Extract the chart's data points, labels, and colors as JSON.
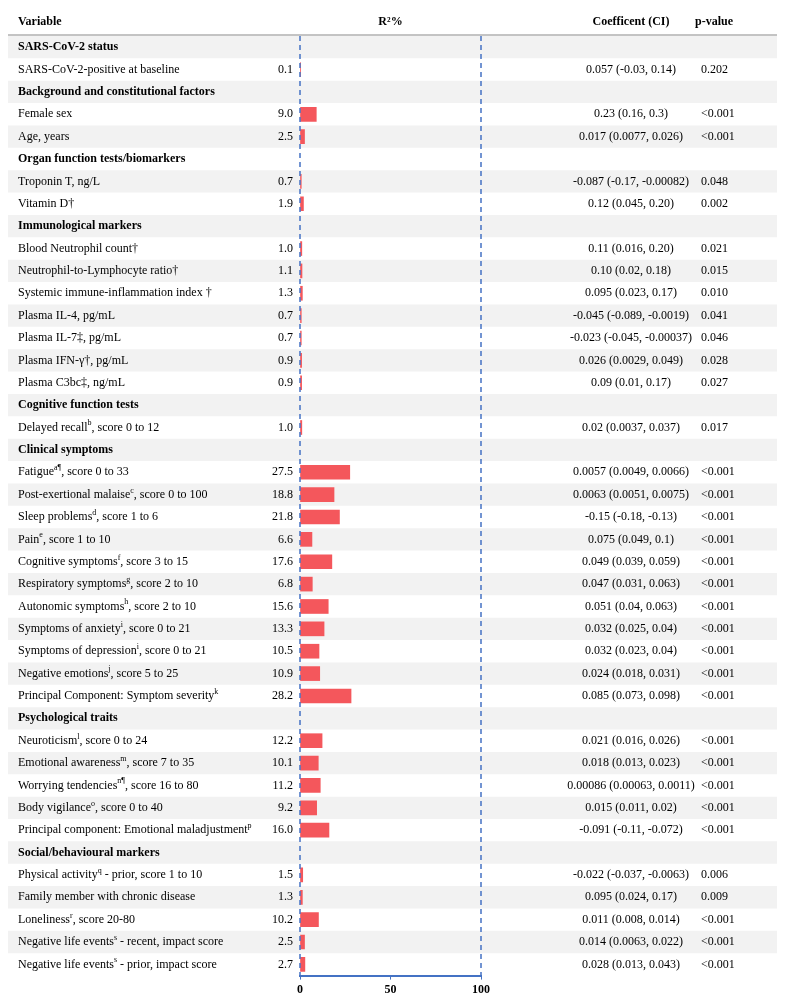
{
  "chart_data": {
    "type": "bar",
    "orientation": "horizontal",
    "categories": [
      "SARS-CoV-2 status",
      "SARS-CoV-2-positive at baseline",
      "Background and constitutional factors",
      "Female sex",
      "Age, years",
      "Organ function tests/biomarkers",
      "Troponin T, ng/L",
      "Vitamin D†",
      "Immunological markers",
      "Blood Neutrophil count†",
      "Neutrophil-to-Lymphocyte ratio†",
      "Systemic immune-inflammation index †",
      "Plasma IL-4, pg/mL",
      "Plasma IL-7‡, pg/mL",
      "Plasma IFN-γ†, pg/mL",
      "Plasma C3bc‡, ng/mL",
      "Cognitive function tests",
      "Delayed recall$^{b}$, score 0 to 12",
      "Clinical symptoms",
      "Fatigue$^{a¶}$, score 0 to 33",
      "Post-exertional malaise$^{c}$, score 0 to 100",
      "Sleep problems$^{d}$, score 1 to 6",
      "Pain$^{e}$, score 1 to 10",
      "Cognitive symptoms$^{f}$, score 3 to 15",
      "Respiratory symptoms$^{g}$, score 2 to 10",
      "Autonomic symptoms$^{h}$, score 2 to 10",
      "Symptoms of anxiety$^{i}$, score 0 to 21",
      "Symptoms of depression$^{i}$, score 0 to 21",
      "Negative emotions$^{j}$, score 5 to 25",
      "Principal Component: Symptom severity$^{k}$",
      "Psychological traits",
      "Neuroticism$^{l}$, score 0 to 24",
      "Emotional awareness$^{m}$, score 7 to 35",
      "Worrying tendencies$^{n¶}$, score 16 to 80",
      "Body vigilance$^{o}$, score 0 to 40",
      "Principal component: Emotional maladjustment$^{p}$",
      "Social/behavioural markers",
      "Physical activity$^{q}$ - prior, score 1 to 10",
      "Family member with chronic disease",
      "Loneliness$^{r}$, score 20-80",
      "Negative life events$^{s}$ - recent, impact score",
      "Negative life events$^{s}$ - prior, impact score"
    ],
    "values": [
      null,
      0.1,
      null,
      9.0,
      2.5,
      null,
      0.7,
      1.9,
      null,
      1.0,
      1.1,
      1.3,
      0.7,
      0.7,
      0.9,
      0.9,
      null,
      1.0,
      null,
      27.5,
      18.8,
      21.8,
      6.6,
      17.6,
      6.8,
      15.6,
      13.3,
      10.5,
      10.9,
      28.2,
      null,
      12.2,
      10.1,
      11.2,
      9.2,
      16.0,
      null,
      1.5,
      1.3,
      10.2,
      2.5,
      2.7
    ],
    "value_labels": [
      null,
      "0.1",
      null,
      "9.0",
      "2.5",
      null,
      "0.7",
      "1.9",
      null,
      "1.0",
      "1.1",
      "1.3",
      "0.7",
      "0.7",
      "0.9",
      "0.9",
      null,
      "1.0",
      null,
      "27.5",
      "18.8",
      "21.8",
      "6.6",
      "17.6",
      "6.8",
      "15.6",
      "13.3",
      "10.5",
      "10.9",
      "28.2",
      null,
      "12.2",
      "10.1",
      "11.2",
      "9.2",
      "16.0",
      null,
      "1.5",
      "1.3",
      "10.2",
      "2.5",
      "2.7"
    ],
    "color": "#f4575c",
    "xlim": [
      0,
      100
    ],
    "xticks": [
      0,
      50,
      100
    ],
    "grid": false,
    "legend": false,
    "ref_lines": [
      {
        "axis": "x",
        "value": 0,
        "color": "#4472c4",
        "line_style": "dashed"
      },
      {
        "axis": "x",
        "value": 100,
        "color": "#4472c4",
        "line_style": "dashed"
      }
    ],
    "annotations": [
      "Variable",
      "R²%",
      "Coefficent (CI)",
      "p-value",
      "0.057 (-0.03, 0.14)",
      "0.202",
      "0.23 (0.16, 0.3)",
      "<0.001",
      "0.017 (0.0077, 0.026)",
      "<0.001",
      "-0.087 (-0.17, -0.00082)",
      "0.048",
      "0.12 (0.045, 0.20)",
      "0.002",
      "0.11 (0.016, 0.20)",
      "0.021",
      "0.10 (0.02, 0.18)",
      "0.015",
      "0.095 (0.023, 0.17)",
      "0.010",
      "-0.045 (-0.089, -0.0019)",
      "0.041",
      "-0.023 (-0.045, -0.00037)",
      "0.046",
      "0.026 (0.0029, 0.049)",
      "0.028",
      "0.09 (0.01, 0.17)",
      "0.027",
      "0.02 (0.0037, 0.037)",
      "0.017",
      "0.0057 (0.0049, 0.0066)",
      "<0.001",
      "0.0063 (0.0051, 0.0075)",
      "<0.001",
      "-0.15 (-0.18, -0.13)",
      "<0.001",
      "0.075 (0.049, 0.1)",
      "<0.001",
      "0.049 (0.039, 0.059)",
      "<0.001",
      "0.047 (0.031, 0.063)",
      "<0.001",
      "0.051 (0.04, 0.063)",
      "<0.001",
      "0.032 (0.025, 0.04)",
      "<0.001",
      "0.032 (0.023, 0.04)",
      "<0.001",
      "0.024 (0.018, 0.031)",
      "<0.001",
      "0.085 (0.073, 0.098)",
      "<0.001",
      "0.021 (0.016, 0.026)",
      "<0.001",
      "0.018 (0.013, 0.023)",
      "<0.001",
      "0.00086 (0.00063, 0.0011)",
      "<0.001",
      "0.015 (0.011, 0.02)",
      "<0.001",
      "-0.091 (-0.11, -0.072)",
      "<0.001",
      "-0.022 (-0.037, -0.0063)",
      "0.006",
      "0.095 (0.024, 0.17)",
      "0.009",
      "0.011 (0.008, 0.014)",
      "<0.001",
      "0.014 (0.0063, 0.022)",
      "<0.001",
      "0.028 (0.013, 0.043)",
      "<0.001"
    ]
  }
}
